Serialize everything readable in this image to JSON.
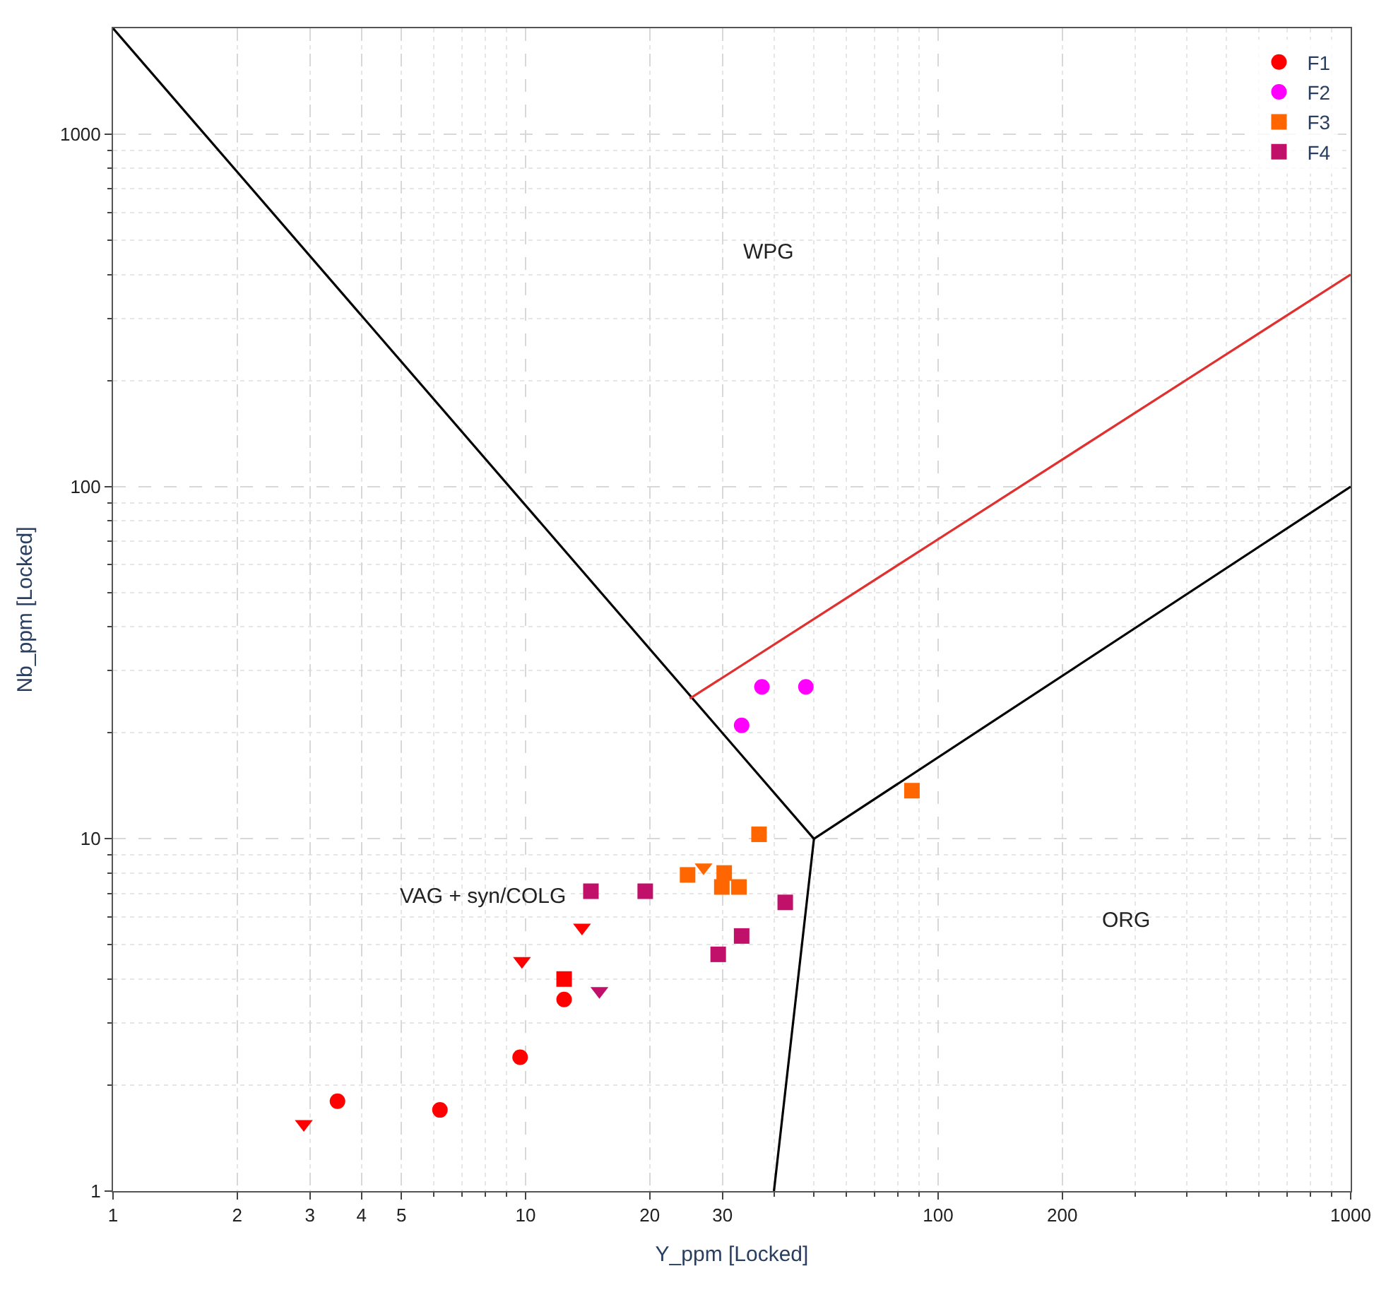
{
  "chart_data": {
    "type": "scatter",
    "xlabel": "Y_ppm [Locked]",
    "ylabel": "Nb_ppm [Locked]",
    "log": "xy",
    "grid": true,
    "legend": "top right",
    "xlim": [
      1,
      1000
    ],
    "ylim": [
      1,
      2000
    ],
    "xticks": [
      1,
      2,
      3,
      4,
      5,
      10,
      20,
      30,
      100,
      200,
      1000
    ],
    "yticks": [
      1,
      10,
      100,
      1000
    ],
    "annotations": [
      "WPG",
      "VAG + syn/COLG",
      "ORG"
    ],
    "series": [
      {
        "type": "line",
        "color": "#000000",
        "marker": "none",
        "x": [
          1,
          50
        ],
        "values": [
          2000,
          10
        ]
      },
      {
        "type": "line",
        "color": "#000000",
        "marker": "none",
        "x": [
          40,
          50
        ],
        "values": [
          1,
          10
        ]
      },
      {
        "type": "line",
        "color": "#000000",
        "marker": "none",
        "x": [
          50,
          1000
        ],
        "values": [
          10,
          100
        ]
      },
      {
        "type": "line",
        "color": "#e03030",
        "marker": "none",
        "x": [
          25,
          1000
        ],
        "values": [
          25,
          400
        ]
      },
      {
        "name": "F1",
        "color": "#ff0000",
        "marker": "circle",
        "x": [
          3.5,
          6.2,
          9.7,
          12.4
        ],
        "values": [
          1.8,
          1.7,
          2.4,
          3.5
        ]
      },
      {
        "color": "#ff0000",
        "marker": "square",
        "x": [
          12.4
        ],
        "values": [
          4.0
        ]
      },
      {
        "color": "#ff0000",
        "marker": "triangle",
        "x": [
          2.9,
          9.8,
          13.7
        ],
        "values": [
          1.55,
          4.5,
          5.6
        ]
      },
      {
        "name": "F2",
        "color": "#ff00ff",
        "marker": "circle",
        "x": [
          37.4,
          47.8,
          33.4
        ],
        "values": [
          27,
          27,
          21
        ]
      },
      {
        "name": "F3",
        "color": "#ff6600",
        "marker": "square",
        "x": [
          36.8,
          86.4,
          24.7,
          30.3,
          29.9,
          32.9
        ],
        "values": [
          10.3,
          13.7,
          7.9,
          8.0,
          7.3,
          7.3
        ]
      },
      {
        "color": "#ff6600",
        "marker": "triangle",
        "x": [
          27
        ],
        "values": [
          8.3
        ]
      },
      {
        "name": "F4",
        "color": "#c0106a",
        "marker": "square",
        "x": [
          14.4,
          19.5,
          42.6,
          33.4,
          29.3
        ],
        "values": [
          7.1,
          7.1,
          6.6,
          5.3,
          4.7
        ]
      },
      {
        "color": "#c0106a",
        "marker": "triangle",
        "x": [
          15.1
        ],
        "values": [
          3.7
        ]
      }
    ]
  }
}
